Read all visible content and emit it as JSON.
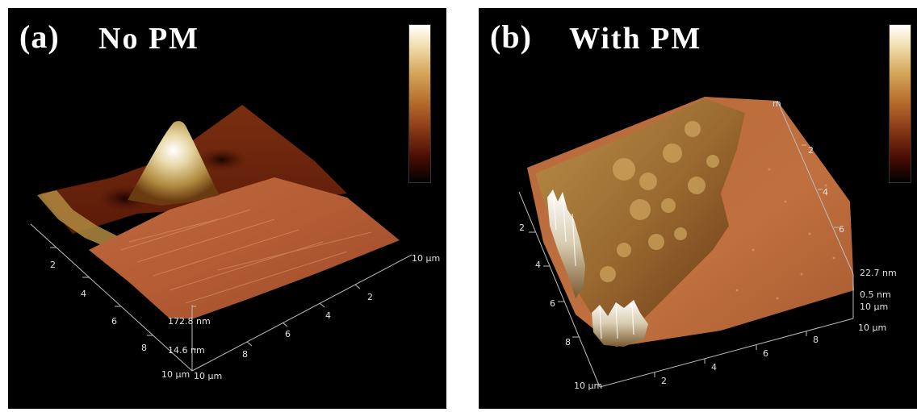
{
  "panels": {
    "a": {
      "tag": "(a)",
      "title": "No PM",
      "axis_left_ticks": [
        "2",
        "4",
        "6",
        "8",
        "10 µm"
      ],
      "axis_right_ticks": [
        "10 µm",
        "2",
        "4",
        "6",
        "8"
      ],
      "z_top": "172.8 nm",
      "z_bottom": "14.6 nm",
      "corner_label": "10 µm"
    },
    "b": {
      "tag": "(b)",
      "title": "With PM",
      "axis_left_ticks": [
        "2",
        "4",
        "6",
        "8",
        "10 µm"
      ],
      "axis_bottom_ticks": [
        "2",
        "4",
        "6",
        "8",
        "10 µm"
      ],
      "axis_back_ticks": [
        "2",
        "4",
        "6"
      ],
      "z_top": "22.7 nm",
      "z_bottom": "0.5 nm",
      "z_corner": "10 µm",
      "back_label": "m"
    }
  },
  "colors": {
    "background": "#000000",
    "surface_light": "#d8845a",
    "surface_mid": "#b05a30",
    "surface_dark": "#5a1808",
    "peak": "#f5f0e0"
  }
}
